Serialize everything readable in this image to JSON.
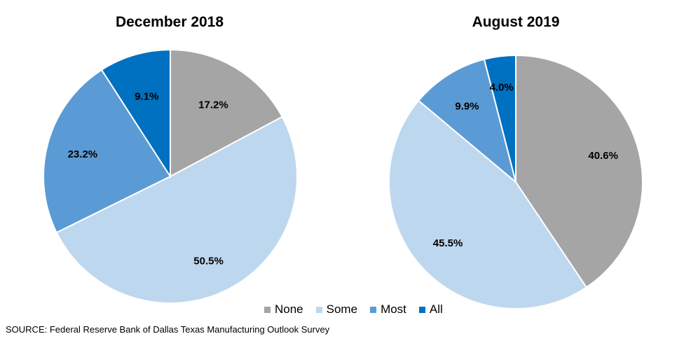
{
  "chart_data": [
    {
      "type": "pie",
      "title": "December 2018",
      "categories": [
        "None",
        "Some",
        "Most",
        "All"
      ],
      "values": [
        17.2,
        50.5,
        23.2,
        9.1
      ],
      "labels": [
        "17.2%",
        "50.5%",
        "23.2%",
        "9.1%"
      ]
    },
    {
      "type": "pie",
      "title": "August 2019",
      "categories": [
        "None",
        "Some",
        "Most",
        "All"
      ],
      "values": [
        40.6,
        45.5,
        9.9,
        4.0
      ],
      "labels": [
        "40.6%",
        "45.5%",
        "9.9%",
        "4.0%"
      ]
    }
  ],
  "colors": {
    "None": "#a5a5a5",
    "Some": "#bdd7ee",
    "Most": "#5b9bd5",
    "All": "#0070c0"
  },
  "legend": {
    "items": [
      "None",
      "Some",
      "Most",
      "All"
    ]
  },
  "source": "SOURCE: Federal Reserve Bank of Dallas Texas Manufacturing Outlook Survey"
}
